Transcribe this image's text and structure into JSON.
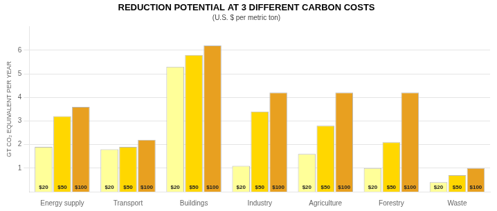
{
  "chart_data": {
    "type": "bar",
    "title": "REDUCTION POTENTIAL AT 3 DIFFERENT CARBON COSTS",
    "subtitle": "(U.S. $ per metric ton)",
    "ylabel": "GT CO₂ EQUIVALENT PER YEAR",
    "categories": [
      "Energy supply",
      "Transport",
      "Buildings",
      "Industry",
      "Agriculture",
      "Forestry",
      "Waste"
    ],
    "series": [
      {
        "name": "$20",
        "color": "#FFFF99",
        "values": [
          1.9,
          1.8,
          5.3,
          1.1,
          1.6,
          1.0,
          0.4
        ]
      },
      {
        "name": "$50",
        "color": "#FFD700",
        "values": [
          3.2,
          1.9,
          5.8,
          3.4,
          2.8,
          2.1,
          0.7
        ]
      },
      {
        "name": "$100",
        "color": "#E8A020",
        "values": [
          3.6,
          2.2,
          6.2,
          4.2,
          4.2,
          4.2,
          1.0
        ]
      }
    ],
    "ylim": [
      0,
      7
    ],
    "yticks": [
      1,
      2,
      3,
      4,
      5,
      6
    ],
    "grid": true
  }
}
